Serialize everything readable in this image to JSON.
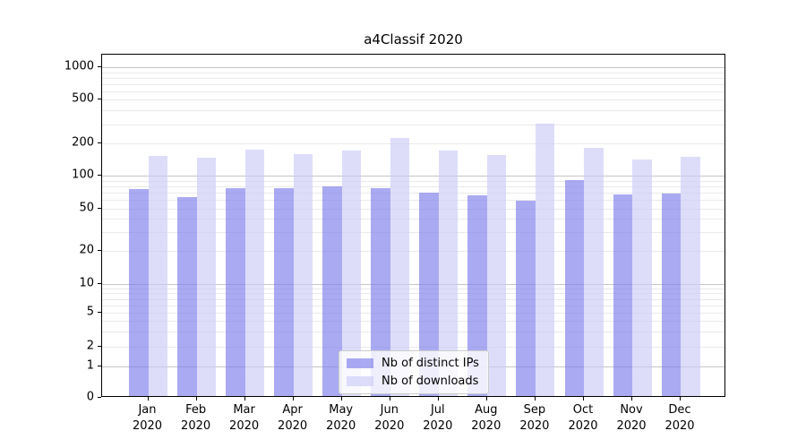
{
  "title": "a4Classif 2020",
  "chart_data": {
    "type": "bar",
    "title": "a4Classif 2020",
    "yscale": "symlog",
    "ylim": [
      0,
      1300
    ],
    "yticks": [
      0,
      1,
      2,
      5,
      10,
      20,
      50,
      100,
      200,
      500,
      1000
    ],
    "grid": "both",
    "xlabel": "",
    "ylabel": "",
    "legend_position": "lower center",
    "categories": [
      "Jan 2020",
      "Feb 2020",
      "Mar 2020",
      "Apr 2020",
      "May 2020",
      "Jun 2020",
      "Jul 2020",
      "Aug 2020",
      "Sep 2020",
      "Oct 2020",
      "Nov 2020",
      "Dec 2020"
    ],
    "series": [
      {
        "name": "Nb of distinct IPs",
        "color": "#7d7deb",
        "values": [
          73,
          62,
          74,
          75,
          77,
          74,
          68,
          64,
          57,
          88,
          65,
          67
        ]
      },
      {
        "name": "Nb of downloads",
        "color": "#cbcbf7",
        "values": [
          148,
          143,
          169,
          153,
          167,
          215,
          167,
          151,
          290,
          174,
          137,
          146
        ]
      }
    ]
  }
}
